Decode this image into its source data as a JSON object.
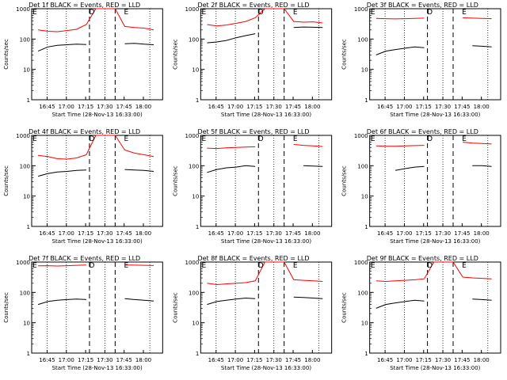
{
  "chart_data": [
    {
      "type": "line",
      "title": "Det 1f BLACK = Events, RED = LLD",
      "ylabel": "Counts/sec",
      "xlabel": "Start Time (28-Nov-13 16:33:00)",
      "yscale": "log",
      "ylim": [
        1,
        1000
      ],
      "x_ticks": [
        "16:45",
        "17:00",
        "17:15",
        "17:30",
        "17:45",
        "18:00"
      ],
      "y_ticks": [
        "1",
        "10",
        "100",
        "1000"
      ],
      "markers": [
        "E",
        "D",
        "E"
      ],
      "series": [
        {
          "name": "Events",
          "color": "#000000",
          "values": [
            40,
            55,
            62,
            65,
            68,
            66,
            null,
            null,
            null,
            70,
            72,
            68,
            65
          ]
        },
        {
          "name": "LLD",
          "color": "#ff0000",
          "values": [
            200,
            180,
            175,
            190,
            210,
            300,
            1000,
            1000,
            1000,
            260,
            240,
            230,
            200
          ]
        }
      ]
    },
    {
      "type": "line",
      "title": "Det 2f BLACK = Events, RED = LLD",
      "ylabel": "Counts/sec",
      "xlabel": "Start Time (28-Nov-13 16:33:00)",
      "yscale": "log",
      "ylim": [
        1,
        1000
      ],
      "x_ticks": [
        "16:45",
        "17:00",
        "17:15",
        "17:30",
        "17:45",
        "18:00"
      ],
      "y_ticks": [
        "1",
        "10",
        "100",
        "1000"
      ],
      "markers": [
        "E",
        "D",
        "E"
      ],
      "series": [
        {
          "name": "Events",
          "color": "#000000",
          "values": [
            75,
            80,
            90,
            110,
            130,
            150,
            null,
            null,
            null,
            240,
            250,
            245,
            240
          ]
        },
        {
          "name": "LLD",
          "color": "#ff0000",
          "values": [
            300,
            270,
            290,
            330,
            380,
            500,
            1000,
            1000,
            1000,
            380,
            360,
            370,
            340
          ]
        }
      ]
    },
    {
      "type": "line",
      "title": "Det 3f BLACK = Events, RED = LLD",
      "ylabel": "Counts/sec",
      "xlabel": "Start Time (28-Nov-13 16:33:00)",
      "yscale": "log",
      "ylim": [
        1,
        1000
      ],
      "x_ticks": [
        "16:45",
        "17:00",
        "17:15",
        "17:30",
        "17:45",
        "18:00"
      ],
      "y_ticks": [
        "1",
        "10",
        "100",
        "1000"
      ],
      "markers": [
        "E",
        "D",
        "E"
      ],
      "series": [
        {
          "name": "Events",
          "color": "#000000",
          "values": [
            30,
            40,
            45,
            50,
            55,
            52,
            null,
            null,
            null,
            null,
            60,
            58,
            55
          ]
        },
        {
          "name": "LLD",
          "color": "#ff0000",
          "values": [
            480,
            470,
            460,
            470,
            480,
            490,
            null,
            null,
            null,
            500,
            490,
            480,
            470
          ]
        }
      ]
    },
    {
      "type": "line",
      "title": "Det 4f BLACK = Events, RED = LLD",
      "ylabel": "Counts/sec",
      "xlabel": "Start Time (28-Nov-13 16:33:00)",
      "yscale": "log",
      "ylim": [
        1,
        1000
      ],
      "x_ticks": [
        "16:45",
        "17:00",
        "17:15",
        "17:30",
        "17:45",
        "18:00"
      ],
      "y_ticks": [
        "1",
        "10",
        "100",
        "1000"
      ],
      "markers": [
        "E",
        "D",
        "E"
      ],
      "series": [
        {
          "name": "Events",
          "color": "#000000",
          "values": [
            45,
            55,
            62,
            65,
            70,
            72,
            null,
            null,
            null,
            75,
            72,
            70,
            65
          ]
        },
        {
          "name": "LLD",
          "color": "#ff0000",
          "values": [
            220,
            200,
            170,
            165,
            180,
            230,
            1000,
            1000,
            1000,
            330,
            260,
            230,
            200
          ]
        }
      ]
    },
    {
      "type": "line",
      "title": "Det 5f BLACK = Events, RED = LLD",
      "ylabel": "Counts/sec",
      "xlabel": "Start Time (28-Nov-13 16:33:00)",
      "yscale": "log",
      "ylim": [
        1,
        1000
      ],
      "x_ticks": [
        "16:45",
        "17:00",
        "17:15",
        "17:30",
        "17:45",
        "18:00"
      ],
      "y_ticks": [
        "1",
        "10",
        "100",
        "1000"
      ],
      "markers": [
        "E",
        "D",
        "E"
      ],
      "series": [
        {
          "name": "Events",
          "color": "#000000",
          "values": [
            60,
            75,
            85,
            90,
            100,
            95,
            null,
            null,
            null,
            null,
            100,
            98,
            95
          ]
        },
        {
          "name": "LLD",
          "color": "#ff0000",
          "values": [
            380,
            370,
            390,
            400,
            410,
            420,
            null,
            null,
            null,
            500,
            470,
            450,
            430
          ]
        }
      ]
    },
    {
      "type": "line",
      "title": "Det 6f BLACK = Events, RED = LLD",
      "ylabel": "Counts/sec",
      "xlabel": "Start Time (28-Nov-13 16:33:00)",
      "yscale": "log",
      "ylim": [
        1,
        1000
      ],
      "x_ticks": [
        "16:45",
        "17:00",
        "17:15",
        "17:30",
        "17:45",
        "18:00"
      ],
      "y_ticks": [
        "1",
        "10",
        "100",
        "1000"
      ],
      "markers": [
        "E",
        "D",
        "E"
      ],
      "series": [
        {
          "name": "Events",
          "color": "#000000",
          "values": [
            null,
            null,
            70,
            80,
            90,
            95,
            null,
            null,
            null,
            null,
            100,
            100,
            95
          ]
        },
        {
          "name": "LLD",
          "color": "#ff0000",
          "values": [
            450,
            440,
            440,
            450,
            460,
            470,
            null,
            null,
            null,
            600,
            560,
            540,
            520
          ]
        }
      ]
    },
    {
      "type": "line",
      "title": "Det 7f BLACK = Events, RED = LLD",
      "ylabel": "Counts/sec",
      "xlabel": "Start Time (28-Nov-13 16:33:00)",
      "yscale": "log",
      "ylim": [
        1,
        1000
      ],
      "x_ticks": [
        "16:45",
        "17:00",
        "17:15",
        "17:30",
        "17:45",
        "18:00"
      ],
      "y_ticks": [
        "1",
        "10",
        "100",
        "1000"
      ],
      "markers": [
        "E",
        "D",
        "E"
      ],
      "series": [
        {
          "name": "Events",
          "color": "#000000",
          "values": [
            40,
            50,
            55,
            58,
            60,
            58,
            null,
            null,
            null,
            62,
            58,
            55,
            52
          ]
        },
        {
          "name": "LLD",
          "color": "#ff0000",
          "values": [
            750,
            760,
            740,
            760,
            780,
            800,
            null,
            null,
            null,
            800,
            790,
            780,
            770
          ]
        }
      ]
    },
    {
      "type": "line",
      "title": "Det 8f BLACK = Events, RED = LLD",
      "ylabel": "Counts/sec",
      "xlabel": "Start Time (28-Nov-13 16:33:00)",
      "yscale": "log",
      "ylim": [
        1,
        1000
      ],
      "x_ticks": [
        "16:45",
        "17:00",
        "17:15",
        "17:30",
        "17:45",
        "18:00"
      ],
      "y_ticks": [
        "1",
        "10",
        "100",
        "1000"
      ],
      "markers": [
        "E",
        "D",
        "E"
      ],
      "series": [
        {
          "name": "Events",
          "color": "#000000",
          "values": [
            40,
            50,
            55,
            60,
            65,
            62,
            null,
            null,
            null,
            70,
            68,
            65,
            62
          ]
        },
        {
          "name": "LLD",
          "color": "#ff0000",
          "values": [
            200,
            180,
            190,
            200,
            210,
            240,
            1000,
            1000,
            1000,
            260,
            250,
            240,
            230
          ]
        }
      ]
    },
    {
      "type": "line",
      "title": "Det 9f BLACK = Events, RED = LLD",
      "ylabel": "Counts/sec",
      "xlabel": "Start Time (28-Nov-13 16:33:00)",
      "yscale": "log",
      "ylim": [
        1,
        1000
      ],
      "x_ticks": [
        "16:45",
        "17:00",
        "17:15",
        "17:30",
        "17:45",
        "18:00"
      ],
      "y_ticks": [
        "1",
        "10",
        "100",
        "1000"
      ],
      "markers": [
        "E",
        "D",
        "E"
      ],
      "series": [
        {
          "name": "Events",
          "color": "#000000",
          "values": [
            30,
            40,
            45,
            50,
            55,
            52,
            null,
            null,
            null,
            null,
            60,
            58,
            55
          ]
        },
        {
          "name": "LLD",
          "color": "#ff0000",
          "values": [
            240,
            230,
            240,
            250,
            260,
            280,
            1000,
            1000,
            1000,
            320,
            300,
            290,
            280
          ]
        }
      ]
    }
  ]
}
